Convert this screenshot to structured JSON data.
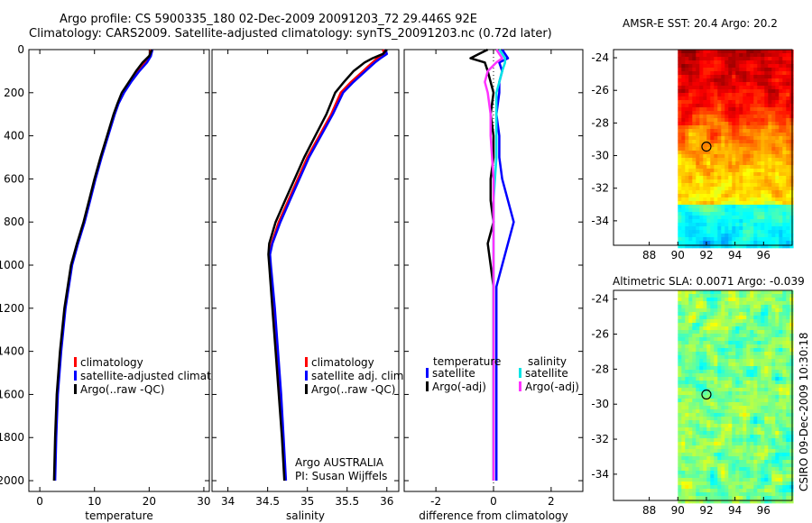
{
  "header": {
    "title_line1": "Argo profile: CS 5900335_180 02-Dec-2009 20091203_72 29.446S 92E",
    "title_line2": "Climatology: CARS2009. Satellite-adjusted climatology: synTS_20091203.nc (0.72d later)"
  },
  "colors": {
    "climatology": "#ff0000",
    "satellite": "#0000ff",
    "argo": "#000000",
    "sal_satellite": "#00e5e5",
    "sal_argo": "#ff33ff"
  },
  "chart_data": [
    {
      "type": "line",
      "id": "temperature",
      "xlabel": "temperature",
      "xlim": [
        -2,
        31
      ],
      "ylim": [
        2050,
        0
      ],
      "xticks": [
        "0",
        "10",
        "20",
        "30"
      ],
      "yticks": [
        "0",
        "200",
        "400",
        "600",
        "800",
        "1000",
        "1200",
        "1400",
        "1600",
        "1800",
        "2000"
      ],
      "legend": [
        "climatology",
        "satellite-adjusted climatology",
        "Argo(..raw -QC)"
      ],
      "series": [
        {
          "name": "climatology",
          "color": "#ff0000",
          "depth": [
            0,
            30,
            60,
            100,
            150,
            200,
            250,
            300,
            400,
            500,
            600,
            700,
            800,
            900,
            1000,
            1200,
            1400,
            1600,
            1800,
            2000
          ],
          "values": [
            20.3,
            20.1,
            19.2,
            17.9,
            16.5,
            15.2,
            14.3,
            13.6,
            12.4,
            11.2,
            10.1,
            9.1,
            8.1,
            6.9,
            5.8,
            4.6,
            3.8,
            3.2,
            2.9,
            2.7
          ]
        },
        {
          "name": "satellite-adjusted climatology",
          "color": "#0000ff",
          "depth": [
            0,
            30,
            60,
            100,
            150,
            200,
            250,
            300,
            400,
            500,
            600,
            700,
            800,
            900,
            1000,
            1200,
            1400,
            1600,
            1800,
            2000
          ],
          "values": [
            20.6,
            20.3,
            19.6,
            18.2,
            16.7,
            15.4,
            14.4,
            13.7,
            12.5,
            11.3,
            10.2,
            9.2,
            8.2,
            7.0,
            5.9,
            4.7,
            3.9,
            3.3,
            3.0,
            2.8
          ]
        },
        {
          "name": "Argo(..raw -QC)",
          "color": "#000000",
          "depth": [
            0,
            30,
            60,
            100,
            150,
            200,
            250,
            300,
            400,
            500,
            600,
            700,
            800,
            900,
            1000,
            1200,
            1400,
            1600,
            1800,
            2000
          ],
          "values": [
            20.5,
            20.0,
            18.8,
            17.6,
            16.3,
            15.0,
            14.2,
            13.5,
            12.3,
            11.1,
            10.0,
            9.0,
            8.0,
            6.8,
            5.7,
            4.5,
            3.7,
            3.1,
            2.8,
            2.6
          ]
        }
      ]
    },
    {
      "type": "line",
      "id": "salinity",
      "xlabel": "salinity",
      "xlim": [
        33.8,
        36.15
      ],
      "ylim": [
        2050,
        0
      ],
      "xticks": [
        "34",
        "34.5",
        "35",
        "35.5",
        "36"
      ],
      "legend": [
        "climatology",
        "satellite adj. clim.",
        "Argo(..raw -QC)"
      ],
      "annotation_line1": "Argo AUSTRALIA",
      "annotation_line2": "PI: Susan Wijffels",
      "series": [
        {
          "name": "climatology",
          "color": "#ff0000",
          "depth": [
            0,
            20,
            40,
            60,
            80,
            100,
            150,
            200,
            300,
            400,
            500,
            600,
            700,
            800,
            900,
            950,
            1000,
            1200,
            1400,
            1600,
            1800,
            2000
          ],
          "values": [
            35.95,
            35.97,
            35.88,
            35.82,
            35.76,
            35.7,
            35.55,
            35.42,
            35.3,
            35.15,
            35.0,
            34.88,
            34.76,
            34.64,
            34.55,
            34.52,
            34.53,
            34.58,
            34.62,
            34.66,
            34.69,
            34.72
          ]
        },
        {
          "name": "satellite adj. clim.",
          "color": "#0000ff",
          "depth": [
            0,
            20,
            40,
            60,
            80,
            100,
            150,
            200,
            300,
            400,
            500,
            600,
            700,
            800,
            900,
            950,
            1000,
            1200,
            1400,
            1600,
            1800,
            2000
          ],
          "values": [
            35.98,
            36.0,
            35.92,
            35.85,
            35.79,
            35.73,
            35.58,
            35.45,
            35.32,
            35.17,
            35.02,
            34.9,
            34.78,
            34.66,
            34.56,
            34.53,
            34.54,
            34.59,
            34.63,
            34.67,
            34.7,
            34.73
          ]
        },
        {
          "name": "Argo(..raw -QC)",
          "color": "#000000",
          "depth": [
            0,
            20,
            40,
            60,
            80,
            100,
            150,
            200,
            300,
            400,
            500,
            600,
            700,
            800,
            900,
            950,
            1000,
            1200,
            1400,
            1600,
            1800,
            2000
          ],
          "values": [
            36.0,
            35.95,
            35.82,
            35.72,
            35.65,
            35.58,
            35.46,
            35.35,
            35.24,
            35.1,
            34.96,
            34.84,
            34.72,
            34.6,
            34.52,
            34.51,
            34.52,
            34.56,
            34.6,
            34.64,
            34.68,
            34.71
          ]
        }
      ]
    },
    {
      "type": "line",
      "id": "difference",
      "xlabel": "difference from climatology",
      "xlim": [
        -3.1,
        3.1
      ],
      "xticks": [
        "-2",
        "0",
        "2"
      ],
      "legend_group1_title": "temperature",
      "legend_group2_title": "salinity",
      "legend": [
        "satellite",
        "Argo(-adj)",
        "satellite",
        "Argo(-adj)"
      ],
      "series": [
        {
          "name": "temperature satellite",
          "color": "#0000ff",
          "depth": [
            0,
            20,
            40,
            60,
            100,
            150,
            200,
            300,
            400,
            500,
            600,
            700,
            800,
            900,
            1000,
            1100,
            1200,
            1400,
            1600,
            1800,
            2000
          ],
          "values": [
            0.3,
            0.4,
            0.5,
            0.2,
            0.3,
            0.2,
            0.2,
            0.1,
            0.2,
            0.2,
            0.3,
            0.5,
            0.7,
            0.5,
            0.3,
            0.1,
            0.1,
            0.1,
            0.1,
            0.1,
            0.1
          ]
        },
        {
          "name": "temperature Argo(-adj)",
          "color": "#000000",
          "depth": [
            0,
            20,
            40,
            60,
            100,
            150,
            200,
            300,
            400,
            500,
            600,
            700,
            800,
            900,
            1000,
            1100,
            1200,
            1400,
            1600,
            1800,
            2000
          ],
          "values": [
            -0.2,
            -0.5,
            -0.8,
            -0.3,
            -0.2,
            -0.1,
            0.0,
            -0.1,
            0.0,
            0.0,
            -0.1,
            -0.1,
            0.0,
            -0.2,
            -0.1,
            0.0,
            0.0,
            0.0,
            0.0,
            0.0,
            0.0
          ]
        },
        {
          "name": "salinity satellite",
          "color": "#00e5e5",
          "depth": [
            0,
            20,
            40,
            60,
            100,
            150,
            200,
            300,
            400,
            500,
            600,
            700,
            800,
            900,
            1000,
            1100,
            1200,
            1400,
            1600,
            1800,
            2000
          ],
          "values": [
            0.2,
            0.3,
            0.4,
            0.4,
            0.3,
            0.2,
            0.1,
            0.1,
            0.1,
            0.1,
            0.05,
            0.0,
            0.0,
            0.0,
            0.0,
            0.0,
            0.0,
            0.0,
            0.0,
            0.0,
            0.0
          ]
        },
        {
          "name": "salinity Argo(-adj)",
          "color": "#ff33ff",
          "depth": [
            0,
            20,
            40,
            60,
            100,
            150,
            200,
            300,
            400,
            500,
            600,
            700,
            800,
            900,
            1000,
            1100,
            1200,
            1400,
            1600,
            1800,
            2000
          ],
          "values": [
            0.1,
            0.2,
            0.3,
            0.1,
            -0.2,
            -0.3,
            -0.2,
            -0.1,
            -0.1,
            -0.05,
            0.0,
            0.0,
            0.0,
            0.0,
            0.0,
            0.0,
            0.0,
            0.0,
            0.0,
            0.0,
            0.0
          ]
        }
      ]
    },
    {
      "type": "heatmap",
      "id": "sst-map",
      "title": "AMSR-E SST: 20.4 Argo: 20.2",
      "xlim": [
        85.5,
        98
      ],
      "ylim": [
        -35.5,
        -23.5
      ],
      "xticks": [
        "88",
        "90",
        "92",
        "94",
        "96"
      ],
      "yticks": [
        "-24",
        "-26",
        "-28",
        "-30",
        "-32",
        "-34"
      ],
      "marker": [
        92,
        -29.45
      ]
    },
    {
      "type": "heatmap",
      "id": "sla-map",
      "title": "Altimetric SLA: 0.0071 Argo: -0.039",
      "xlim": [
        85.5,
        98
      ],
      "ylim": [
        -35.5,
        -23.5
      ],
      "xticks": [
        "88",
        "90",
        "92",
        "94",
        "96"
      ],
      "yticks": [
        "-24",
        "-26",
        "-28",
        "-30",
        "-32",
        "-34"
      ],
      "marker": [
        92,
        -29.45
      ]
    }
  ],
  "side_stamp": "CSIRO 09-Dec-2009 10:30:18"
}
